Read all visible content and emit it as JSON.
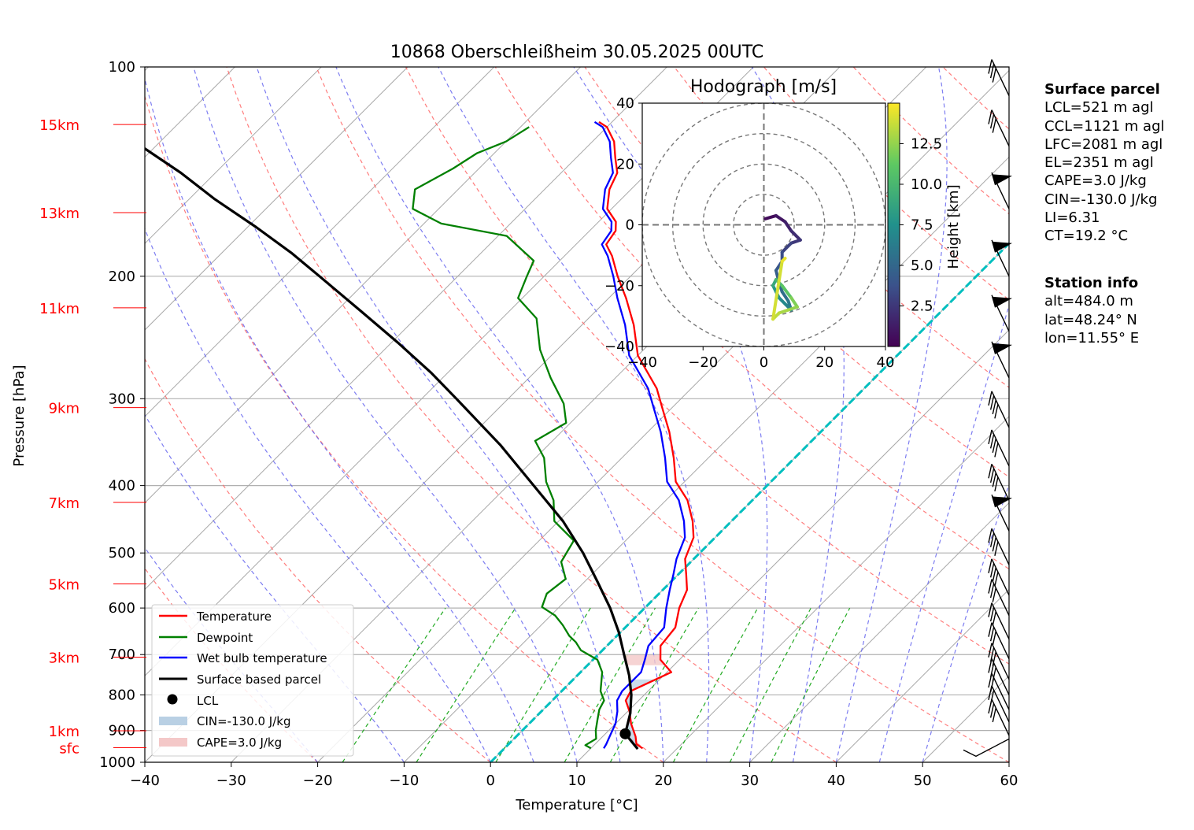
{
  "title": "10868 Oberschleißheim 30.05.2025 00UTC",
  "xlabel": "Temperature [°C]",
  "ylabel": "Pressure [hPa]",
  "colors": {
    "temperature": "#ff0000",
    "dewpoint": "#008000",
    "wetbulb": "#0000ff",
    "parcel": "#000000",
    "isotherm_zero": "#00bfbf",
    "dry_adiabat": "#ff6666",
    "moist_adiabat": "#6666ee",
    "mixing_ratio": "#22aa22",
    "cin_fill": "#b9d0e4",
    "cape_fill": "#f4c8c8",
    "height_labels": "#ff0000"
  },
  "height_labels": [
    {
      "label": "15km",
      "p": 121
    },
    {
      "label": "13km",
      "p": 162
    },
    {
      "label": "11km",
      "p": 222
    },
    {
      "label": "9km",
      "p": 309
    },
    {
      "label": "7km",
      "p": 423
    },
    {
      "label": "5km",
      "p": 554
    },
    {
      "label": "3km",
      "p": 706
    },
    {
      "label": "1km",
      "p": 901
    },
    {
      "label": "sfc",
      "p": 953
    }
  ],
  "legend": {
    "temperature": "Temperature",
    "dewpoint": "Dewpoint",
    "wetbulb": "Wet bulb temperature",
    "parcel": "Surface based parcel",
    "lcl": "LCL",
    "cin": "CIN=-130.0 J/kg",
    "cape": "CAPE=3.0 J/kg"
  },
  "surface_parcel": {
    "heading": "Surface parcel",
    "lines": [
      "LCL=521 m agl",
      "CCL=1121 m agl",
      "LFC=2081 m agl",
      "EL=2351 m agl",
      "CAPE=3.0 J/kg",
      "CIN=-130.0 J/kg",
      "LI=6.31",
      "CT=19.2 °C"
    ]
  },
  "station_info": {
    "heading": "Station info",
    "lines": [
      "alt=484.0 m",
      "lat=48.24° N",
      "lon=11.55° E"
    ]
  },
  "hodograph": {
    "title": "Hodograph [m/s]",
    "colorbar_label": "Height [km]",
    "colorbar_ticks": [
      "2.5",
      "5.0",
      "7.5",
      "10.0",
      "12.5"
    ],
    "ticks": [
      "−40",
      "−20",
      "0",
      "20",
      "40"
    ],
    "xlim": [
      -40,
      40
    ],
    "ylim": [
      -40,
      40
    ]
  },
  "chart_data": {
    "type": "line",
    "title": "10868 Oberschleißheim 30.05.2025 00UTC",
    "xlabel": "Temperature [°C]",
    "ylabel": "Pressure [hPa]",
    "xlim": [
      -40,
      60
    ],
    "ylim": [
      1000,
      100
    ],
    "yscale": "log",
    "xticks": [
      -40,
      -30,
      -20,
      -10,
      0,
      10,
      20,
      30,
      40,
      50,
      60
    ],
    "xtick_labels": [
      "−40",
      "−30",
      "−20",
      "−10",
      "0",
      "10",
      "20",
      "30",
      "40",
      "50",
      "60"
    ],
    "yticks": [
      100,
      200,
      300,
      400,
      500,
      600,
      700,
      800,
      900,
      1000
    ],
    "grid": true,
    "legend_position": "bottom-left",
    "series": [
      {
        "name": "Temperature",
        "key": "temperature",
        "points": [
          [
            16.0,
            955
          ],
          [
            14.8,
            942
          ],
          [
            13.8,
            918
          ],
          [
            11.8,
            880
          ],
          [
            10.2,
            845
          ],
          [
            8.5,
            815
          ],
          [
            8.0,
            790
          ],
          [
            10.5,
            742
          ],
          [
            7.8,
            712
          ],
          [
            6.2,
            680
          ],
          [
            5.8,
            640
          ],
          [
            4.0,
            600
          ],
          [
            2.8,
            565
          ],
          [
            1.0,
            538
          ],
          [
            -1.0,
            510
          ],
          [
            -2.5,
            475
          ],
          [
            -4.5,
            450
          ],
          [
            -7.5,
            420
          ],
          [
            -11.0,
            395
          ],
          [
            -14.0,
            365
          ],
          [
            -17.5,
            335
          ],
          [
            -21.0,
            310
          ],
          [
            -24.0,
            290
          ],
          [
            -30.0,
            260
          ],
          [
            -34.0,
            235
          ],
          [
            -38.0,
            215
          ],
          [
            -41.5,
            200
          ],
          [
            -44.5,
            187
          ],
          [
            -46.5,
            180
          ],
          [
            -47.0,
            172
          ],
          [
            -48.0,
            167
          ],
          [
            -50.5,
            160
          ],
          [
            -52.5,
            150
          ],
          [
            -53.5,
            142
          ],
          [
            -55.5,
            135
          ],
          [
            -57.5,
            128
          ],
          [
            -60.0,
            122
          ],
          [
            -61.5,
            120
          ]
        ]
      },
      {
        "name": "Dewpoint",
        "key": "dewpoint",
        "points": [
          [
            10.0,
            955
          ],
          [
            9.0,
            945
          ],
          [
            9.5,
            925
          ],
          [
            8.5,
            900
          ],
          [
            7.5,
            870
          ],
          [
            6.5,
            840
          ],
          [
            6.0,
            815
          ],
          [
            4.5,
            790
          ],
          [
            2.5,
            742
          ],
          [
            0.5,
            712
          ],
          [
            -2.5,
            690
          ],
          [
            -4.0,
            672
          ],
          [
            -5.5,
            658
          ],
          [
            -7.5,
            635
          ],
          [
            -9.5,
            615
          ],
          [
            -12.0,
            598
          ],
          [
            -13.0,
            572
          ],
          [
            -12.5,
            545
          ],
          [
            -15.0,
            515
          ],
          [
            -16.0,
            480
          ],
          [
            -20.5,
            450
          ],
          [
            -23.0,
            420
          ],
          [
            -26.0,
            395
          ],
          [
            -29.0,
            365
          ],
          [
            -32.0,
            345
          ],
          [
            -30.5,
            325
          ],
          [
            -33.0,
            305
          ],
          [
            -37.5,
            280
          ],
          [
            -42.0,
            255
          ],
          [
            -46.0,
            230
          ],
          [
            -50.5,
            215
          ],
          [
            -52.0,
            200
          ],
          [
            -53.0,
            190
          ],
          [
            -59.0,
            175
          ],
          [
            -68.0,
            168
          ],
          [
            -73.0,
            160
          ],
          [
            -75.0,
            150
          ],
          [
            -73.0,
            140
          ],
          [
            -72.0,
            133
          ],
          [
            -70.0,
            128
          ],
          [
            -69.0,
            122
          ]
        ]
      },
      {
        "name": "Wet bulb temperature",
        "key": "wetbulb",
        "points": [
          [
            11.5,
            955
          ],
          [
            11.3,
            942
          ],
          [
            10.8,
            918
          ],
          [
            10.0,
            880
          ],
          [
            8.8,
            845
          ],
          [
            7.5,
            815
          ],
          [
            7.0,
            790
          ],
          [
            7.0,
            742
          ],
          [
            6.0,
            712
          ],
          [
            4.8,
            680
          ],
          [
            4.5,
            640
          ],
          [
            2.5,
            600
          ],
          [
            0.8,
            565
          ],
          [
            -0.5,
            538
          ],
          [
            -2.0,
            510
          ],
          [
            -3.5,
            475
          ],
          [
            -5.5,
            450
          ],
          [
            -8.5,
            420
          ],
          [
            -12.0,
            395
          ],
          [
            -15.0,
            365
          ],
          [
            -18.5,
            335
          ],
          [
            -22.0,
            310
          ],
          [
            -25.0,
            290
          ],
          [
            -31.0,
            260
          ],
          [
            -35.0,
            235
          ],
          [
            -39.0,
            215
          ],
          [
            -42.0,
            200
          ],
          [
            -45.0,
            187
          ],
          [
            -47.0,
            180
          ],
          [
            -47.5,
            172
          ],
          [
            -48.5,
            167
          ],
          [
            -51.0,
            160
          ],
          [
            -53.0,
            150
          ],
          [
            -54.0,
            142
          ],
          [
            -56.0,
            135
          ],
          [
            -58.0,
            128
          ],
          [
            -60.5,
            122
          ],
          [
            -62.0,
            120
          ]
        ]
      },
      {
        "name": "Surface based parcel",
        "key": "parcel",
        "points": [
          [
            15.5,
            957
          ],
          [
            12.3,
            910
          ],
          [
            10.5,
            850
          ],
          [
            8.5,
            800
          ],
          [
            6.0,
            750
          ],
          [
            3.0,
            700
          ],
          [
            -0.2,
            650
          ],
          [
            -4.0,
            600
          ],
          [
            -8.5,
            550
          ],
          [
            -13.5,
            500
          ],
          [
            -19.5,
            450
          ],
          [
            -27.0,
            400
          ],
          [
            -35.5,
            350
          ],
          [
            -46.0,
            300
          ],
          [
            -52.0,
            275
          ],
          [
            -59.0,
            250
          ],
          [
            -67.0,
            225
          ],
          [
            -76.0,
            200
          ],
          [
            -82.0,
            185
          ],
          [
            -89.0,
            170
          ],
          [
            -97.0,
            155
          ],
          [
            -104.0,
            142
          ],
          [
            -111.0,
            131
          ],
          [
            -116.0,
            124
          ]
        ]
      }
    ],
    "lcl": {
      "t": 12.3,
      "p": 910
    },
    "isotherm_zero": 0,
    "hodograph_trace": [
      {
        "u": 0.5,
        "v": 2,
        "h": 0.5
      },
      {
        "u": 4,
        "v": 3,
        "h": 1.0
      },
      {
        "u": 7,
        "v": 1,
        "h": 1.5
      },
      {
        "u": 9,
        "v": -2,
        "h": 2.0
      },
      {
        "u": 12,
        "v": -5,
        "h": 2.5
      },
      {
        "u": 9,
        "v": -6,
        "h": 3.0
      },
      {
        "u": 6,
        "v": -9,
        "h": 3.5
      },
      {
        "u": 6,
        "v": -12,
        "h": 4.0
      },
      {
        "u": 4,
        "v": -15,
        "h": 4.5
      },
      {
        "u": 5,
        "v": -19,
        "h": 5.0
      },
      {
        "u": 6,
        "v": -22,
        "h": 5.5
      },
      {
        "u": 8,
        "v": -25,
        "h": 6.0
      },
      {
        "u": 9,
        "v": -28,
        "h": 6.5
      },
      {
        "u": 7,
        "v": -26,
        "h": 7.0
      },
      {
        "u": 5,
        "v": -24,
        "h": 7.5
      },
      {
        "u": 4,
        "v": -22,
        "h": 8.0
      },
      {
        "u": 3,
        "v": -20,
        "h": 9.0
      },
      {
        "u": 4,
        "v": -18,
        "h": 10.0
      },
      {
        "u": 6,
        "v": -20,
        "h": 11.0
      },
      {
        "u": 9,
        "v": -24,
        "h": 12.0
      },
      {
        "u": 11,
        "v": -27,
        "h": 12.5
      },
      {
        "u": 8,
        "v": -28,
        "h": 13.0
      },
      {
        "u": 5,
        "v": -29,
        "h": 13.5
      },
      {
        "u": 3,
        "v": -31,
        "h": 14.0
      },
      {
        "u": 6,
        "v": -12,
        "h": 14.5
      },
      {
        "u": 7,
        "v": -11,
        "h": 15.0
      }
    ],
    "wind_barbs": [
      {
        "p": 960,
        "kind": "calm"
      },
      {
        "p": 915,
        "flags": 0,
        "barbs": 3
      },
      {
        "p": 875,
        "flags": 0,
        "barbs": 2
      },
      {
        "p": 840,
        "flags": 0,
        "barbs": 2
      },
      {
        "p": 800,
        "flags": 0,
        "barbs": 3
      },
      {
        "p": 760,
        "flags": 0,
        "barbs": 3
      },
      {
        "p": 710,
        "flags": 0,
        "barbs": 3
      },
      {
        "p": 665,
        "flags": 0,
        "barbs": 3
      },
      {
        "p": 615,
        "flags": 0,
        "barbs": 3
      },
      {
        "p": 575,
        "flags": 0,
        "barbs": 4
      },
      {
        "p": 520,
        "flags": 0,
        "barbs": 4
      },
      {
        "p": 465,
        "flags": 1,
        "barbs": 0
      },
      {
        "p": 420,
        "flags": 0,
        "barbs": 4
      },
      {
        "p": 375,
        "flags": 0,
        "barbs": 4
      },
      {
        "p": 330,
        "flags": 0,
        "barbs": 4
      },
      {
        "p": 280,
        "flags": 1,
        "barbs": 0
      },
      {
        "p": 240,
        "flags": 1,
        "barbs": 0
      },
      {
        "p": 200,
        "flags": 1,
        "barbs": 0
      },
      {
        "p": 160,
        "flags": 1,
        "barbs": 0
      },
      {
        "p": 130,
        "flags": 0,
        "barbs": 3
      },
      {
        "p": 110,
        "flags": 0,
        "barbs": 3
      }
    ]
  }
}
